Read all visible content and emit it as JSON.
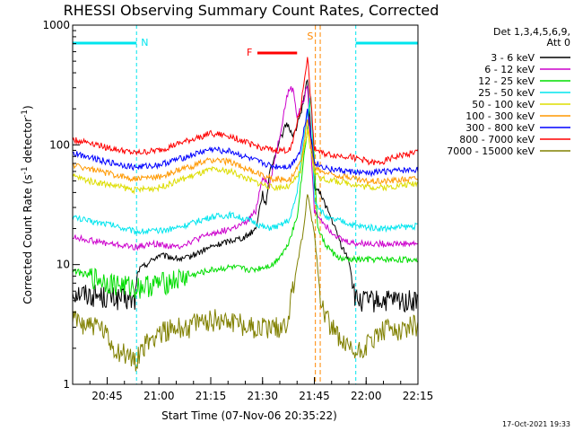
{
  "chart_data": {
    "type": "line",
    "title": "RHESSI Observing Summary Count Rates, Corrected",
    "xlabel": "Start Time (07-Nov-06 20:35:22)",
    "ylabel": "Corrected Count Rate (s⁻¹ detector⁻¹)",
    "ylabel_parts": {
      "pre": "Corrected Count Rate (s",
      "sup1": "-1",
      "mid": " detector",
      "sup2": "-1",
      "post": ")"
    },
    "x_range_minutes": [
      0,
      100
    ],
    "yscale": "log",
    "ylim": [
      1,
      1000
    ],
    "x_ticks": [
      {
        "t": 10,
        "label": "20:45"
      },
      {
        "t": 25,
        "label": "21:00"
      },
      {
        "t": 40,
        "label": "21:15"
      },
      {
        "t": 55,
        "label": "21:30"
      },
      {
        "t": 70,
        "label": "21:45"
      },
      {
        "t": 85,
        "label": "22:00"
      },
      {
        "t": 100,
        "label": "22:15"
      }
    ],
    "y_ticks": [
      {
        "v": 1,
        "label": "1"
      },
      {
        "v": 10,
        "label": "10"
      },
      {
        "v": 100,
        "label": "100"
      },
      {
        "v": 1000,
        "label": "1000"
      }
    ],
    "legend": {
      "header": [
        "Det 1,3,4,5,6,9,",
        "Att 0"
      ],
      "placement": "right"
    },
    "night_periods": [
      [
        0,
        18.5
      ],
      [
        82,
        100
      ]
    ],
    "night_label": "N",
    "flare_flag": {
      "label": "F",
      "start": 53.5,
      "end": 65
    },
    "saa_flag": {
      "label": "S",
      "time": 71
    },
    "series": [
      {
        "name": "3 - 6 keV",
        "color": "#000000",
        "points": [
          [
            0,
            6
          ],
          [
            8,
            5.5
          ],
          [
            18,
            5
          ],
          [
            19,
            9
          ],
          [
            25,
            12
          ],
          [
            32,
            11
          ],
          [
            40,
            14
          ],
          [
            46,
            16
          ],
          [
            50,
            17
          ],
          [
            53,
            20
          ],
          [
            55,
            40
          ],
          [
            56,
            30
          ],
          [
            57,
            60
          ],
          [
            60,
            110
          ],
          [
            62,
            150
          ],
          [
            64,
            120
          ],
          [
            66,
            180
          ],
          [
            68,
            350
          ],
          [
            70,
            45
          ],
          [
            72,
            38
          ],
          [
            74,
            28
          ],
          [
            76,
            20
          ],
          [
            78,
            14
          ],
          [
            80,
            11
          ],
          [
            82,
            5
          ],
          [
            90,
            5
          ],
          [
            100,
            5
          ]
        ]
      },
      {
        "name": "6 - 12 keV",
        "color": "#cc00cc",
        "points": [
          [
            0,
            17
          ],
          [
            5,
            16
          ],
          [
            10,
            15
          ],
          [
            18,
            14
          ],
          [
            24,
            15
          ],
          [
            30,
            14
          ],
          [
            40,
            18
          ],
          [
            46,
            20
          ],
          [
            50,
            22
          ],
          [
            53,
            28
          ],
          [
            55,
            55
          ],
          [
            57,
            45
          ],
          [
            58,
            65
          ],
          [
            60,
            120
          ],
          [
            62,
            250
          ],
          [
            63,
            300
          ],
          [
            64,
            280
          ],
          [
            65,
            170
          ],
          [
            67,
            240
          ],
          [
            68,
            320
          ],
          [
            70,
            28
          ],
          [
            72,
            24
          ],
          [
            74,
            20
          ],
          [
            76,
            18
          ],
          [
            78,
            16
          ],
          [
            82,
            15
          ],
          [
            90,
            15
          ],
          [
            100,
            15
          ]
        ]
      },
      {
        "name": "12 - 25 keV",
        "color": "#00dd00",
        "points": [
          [
            0,
            9
          ],
          [
            5,
            8
          ],
          [
            12,
            7
          ],
          [
            18,
            6.5
          ],
          [
            25,
            7
          ],
          [
            30,
            7.5
          ],
          [
            40,
            9
          ],
          [
            46,
            9.5
          ],
          [
            52,
            9
          ],
          [
            58,
            10
          ],
          [
            62,
            14
          ],
          [
            65,
            25
          ],
          [
            67,
            80
          ],
          [
            69,
            250
          ],
          [
            71,
            20
          ],
          [
            73,
            15
          ],
          [
            76,
            12
          ],
          [
            78,
            11
          ],
          [
            82,
            11
          ],
          [
            90,
            11
          ],
          [
            100,
            11
          ]
        ]
      },
      {
        "name": "25 - 50 keV",
        "color": "#00e5ee",
        "points": [
          [
            0,
            25
          ],
          [
            5,
            23
          ],
          [
            10,
            22
          ],
          [
            18,
            19
          ],
          [
            25,
            19
          ],
          [
            32,
            21
          ],
          [
            40,
            25
          ],
          [
            46,
            26
          ],
          [
            52,
            23
          ],
          [
            56,
            20
          ],
          [
            60,
            21
          ],
          [
            63,
            24
          ],
          [
            65,
            40
          ],
          [
            67,
            120
          ],
          [
            69,
            260
          ],
          [
            70,
            35
          ],
          [
            72,
            28
          ],
          [
            74,
            24
          ],
          [
            78,
            23
          ],
          [
            82,
            21
          ],
          [
            90,
            20
          ],
          [
            100,
            21
          ]
        ]
      },
      {
        "name": "50 - 100 keV",
        "color": "#dddd00",
        "points": [
          [
            0,
            55
          ],
          [
            5,
            50
          ],
          [
            10,
            47
          ],
          [
            18,
            42
          ],
          [
            25,
            44
          ],
          [
            32,
            52
          ],
          [
            40,
            62
          ],
          [
            46,
            60
          ],
          [
            52,
            50
          ],
          [
            58,
            44
          ],
          [
            63,
            45
          ],
          [
            66,
            60
          ],
          [
            68,
            130
          ],
          [
            70,
            60
          ],
          [
            72,
            52
          ],
          [
            76,
            50
          ],
          [
            80,
            48
          ],
          [
            84,
            45
          ],
          [
            90,
            44
          ],
          [
            100,
            48
          ]
        ]
      },
      {
        "name": "100 - 300 keV",
        "color": "#ff9900",
        "points": [
          [
            0,
            68
          ],
          [
            5,
            63
          ],
          [
            10,
            58
          ],
          [
            18,
            52
          ],
          [
            25,
            54
          ],
          [
            32,
            63
          ],
          [
            40,
            75
          ],
          [
            46,
            72
          ],
          [
            52,
            60
          ],
          [
            58,
            52
          ],
          [
            63,
            52
          ],
          [
            66,
            70
          ],
          [
            68,
            160
          ],
          [
            70,
            65
          ],
          [
            72,
            60
          ],
          [
            76,
            56
          ],
          [
            80,
            54
          ],
          [
            84,
            50
          ],
          [
            90,
            50
          ],
          [
            100,
            53
          ]
        ]
      },
      {
        "name": "300 - 800 keV",
        "color": "#0000ff",
        "points": [
          [
            0,
            85
          ],
          [
            5,
            80
          ],
          [
            10,
            72
          ],
          [
            18,
            65
          ],
          [
            25,
            68
          ],
          [
            32,
            78
          ],
          [
            40,
            92
          ],
          [
            46,
            88
          ],
          [
            52,
            75
          ],
          [
            58,
            66
          ],
          [
            63,
            66
          ],
          [
            66,
            90
          ],
          [
            68,
            200
          ],
          [
            70,
            72
          ],
          [
            72,
            66
          ],
          [
            76,
            62
          ],
          [
            80,
            60
          ],
          [
            84,
            58
          ],
          [
            90,
            60
          ],
          [
            100,
            62
          ]
        ]
      },
      {
        "name": "800 - 7000 keV",
        "color": "#ff0000",
        "points": [
          [
            0,
            110
          ],
          [
            5,
            105
          ],
          [
            10,
            95
          ],
          [
            18,
            85
          ],
          [
            25,
            90
          ],
          [
            32,
            105
          ],
          [
            40,
            125
          ],
          [
            46,
            118
          ],
          [
            52,
            100
          ],
          [
            58,
            90
          ],
          [
            63,
            90
          ],
          [
            66,
            200
          ],
          [
            68,
            550
          ],
          [
            70,
            95
          ],
          [
            72,
            85
          ],
          [
            76,
            82
          ],
          [
            80,
            80
          ],
          [
            84,
            75
          ],
          [
            88,
            70
          ],
          [
            94,
            80
          ],
          [
            100,
            88
          ]
        ]
      },
      {
        "name": "7000 - 15000 keV",
        "color": "#808000",
        "points": [
          [
            0,
            3.5
          ],
          [
            8,
            3
          ],
          [
            12,
            2
          ],
          [
            18,
            1.6
          ],
          [
            20,
            2
          ],
          [
            25,
            2.8
          ],
          [
            32,
            3
          ],
          [
            40,
            3.5
          ],
          [
            46,
            3.5
          ],
          [
            52,
            3
          ],
          [
            58,
            3
          ],
          [
            62,
            3.2
          ],
          [
            65,
            10
          ],
          [
            67,
            20
          ],
          [
            68,
            40
          ],
          [
            70,
            18
          ],
          [
            72,
            5
          ],
          [
            74,
            3.5
          ],
          [
            78,
            2.2
          ],
          [
            82,
            1.8
          ],
          [
            90,
            2.8
          ],
          [
            100,
            3.2
          ]
        ]
      }
    ]
  },
  "footer": {
    "date_stamp": "17-Oct-2021 19:33"
  }
}
